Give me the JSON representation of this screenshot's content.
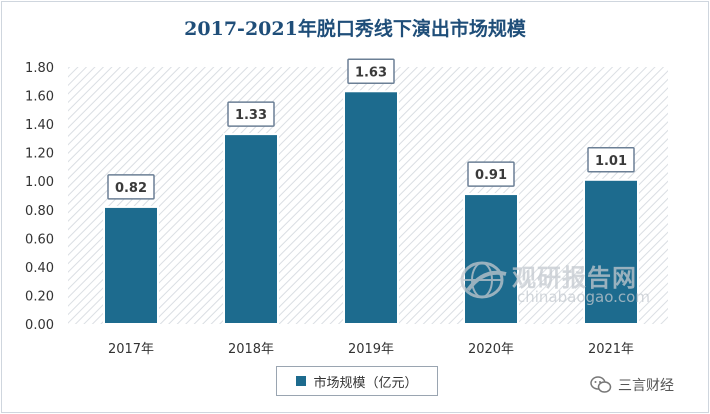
{
  "chart_data": {
    "type": "bar",
    "title": "2017-2021年脱口秀线下演出市场规模",
    "categories": [
      "2017年",
      "2018年",
      "2019年",
      "2020年",
      "2021年"
    ],
    "series": [
      {
        "name": "市场规模（亿元）",
        "values": [
          0.82,
          1.33,
          1.63,
          0.91,
          1.01
        ]
      }
    ],
    "data_labels": [
      "0.82",
      "1.33",
      "1.63",
      "0.91",
      "1.01"
    ],
    "yticks": [
      "0.00",
      "0.20",
      "0.40",
      "0.60",
      "0.80",
      "1.00",
      "1.20",
      "1.40",
      "1.60",
      "1.80"
    ],
    "ylim": [
      0,
      1.8
    ],
    "xlabel": "",
    "ylabel": "",
    "grid": false,
    "legend": "bottom-center",
    "colors": {
      "bar": "#1d6b8e",
      "bar_edge": "#ffffff",
      "plot_hatch": "#d9dde2",
      "label_border": "#6b7f95",
      "title": "#1f4e79"
    }
  },
  "watermark": {
    "cn": "观研报告网",
    "en": "chinabaogao.com",
    "icon": "globe-logo-icon"
  },
  "source": {
    "icon": "wechat-icon",
    "text": "三言财经"
  }
}
